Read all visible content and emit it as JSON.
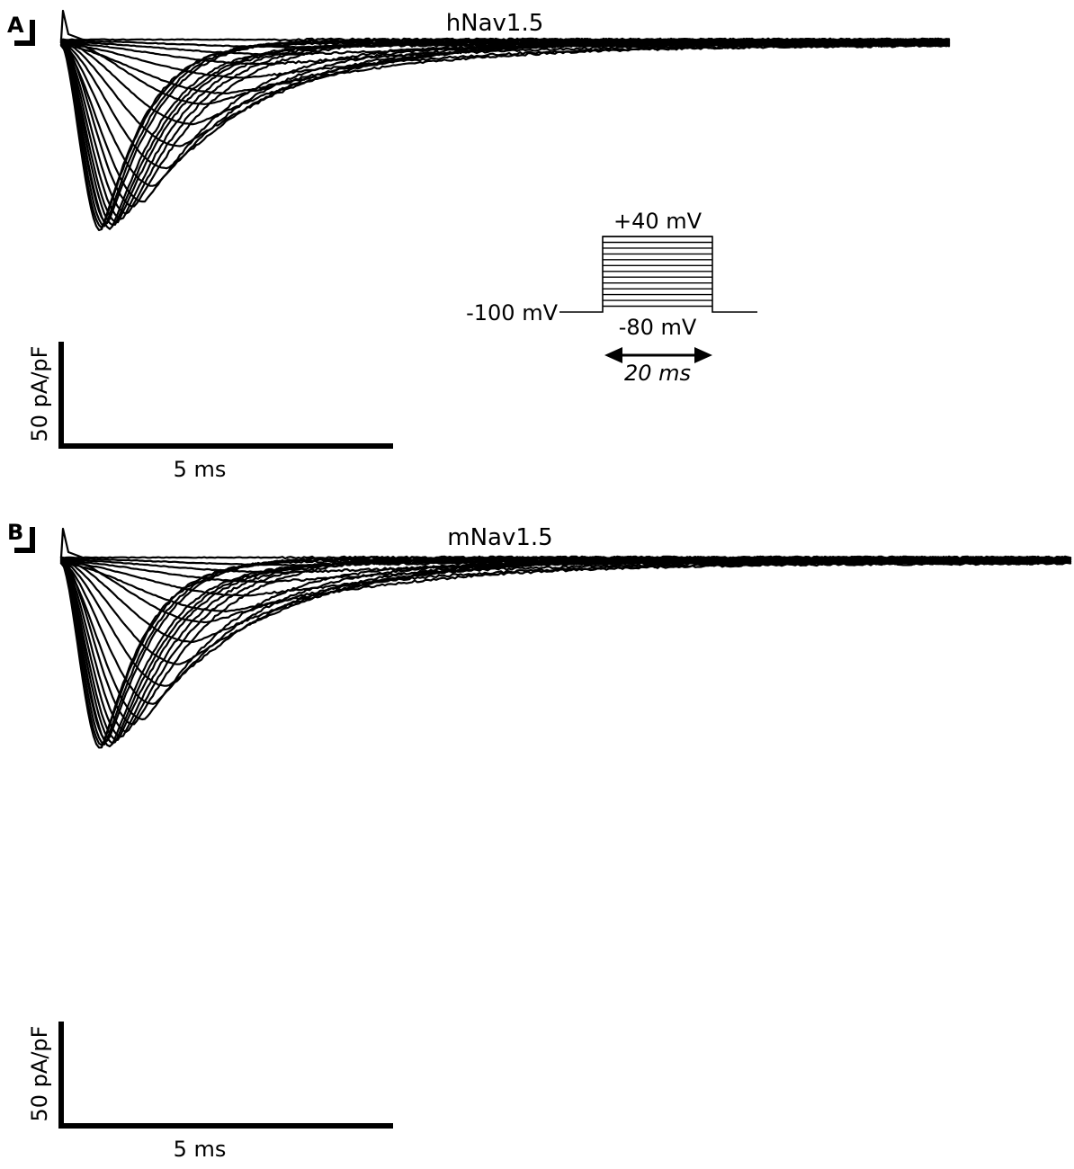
{
  "chart_data": [
    {
      "type": "line",
      "panel_label": "A",
      "title": "hNav1.5",
      "units": {
        "time": "ms",
        "current": "pA/pF"
      },
      "scale_bar": {
        "x_value": 5,
        "x_label": "5 ms",
        "y_value": 50,
        "y_label": "50 pA/pF"
      },
      "trace_count": 22,
      "series": {
        "peak_current_pApF": [
          0,
          -3,
          -6,
          -10,
          -16,
          -23,
          -31,
          -40,
          -50,
          -60,
          -68,
          -75,
          -80,
          -83,
          -85,
          -86,
          -87,
          -88,
          -88,
          -89,
          -89,
          -90
        ],
        "time_to_peak_ms": [
          3.0,
          3.6,
          3.4,
          3.1,
          2.8,
          2.5,
          2.2,
          2.0,
          1.8,
          1.6,
          1.4,
          1.25,
          1.1,
          1.0,
          0.92,
          0.85,
          0.8,
          0.75,
          0.7,
          0.66,
          0.62,
          0.6
        ]
      },
      "protocol": {
        "holding_label": "-100 mV",
        "top_label": "+40 mV",
        "bottom_label": "-80 mV",
        "duration_label": "20 ms",
        "step_count": 13
      }
    },
    {
      "type": "line",
      "panel_label": "B",
      "title": "mNav1.5",
      "units": {
        "time": "ms",
        "current": "pA/pF"
      },
      "scale_bar": {
        "x_value": 5,
        "x_label": "5 ms",
        "y_value": 50,
        "y_label": "50 pA/pF"
      },
      "trace_count": 22,
      "series": {
        "peak_current_pApF": [
          0,
          -3,
          -6,
          -10,
          -16,
          -23,
          -31,
          -40,
          -50,
          -60,
          -68,
          -75,
          -80,
          -83,
          -85,
          -86,
          -87,
          -88,
          -88,
          -89,
          -89,
          -90
        ],
        "time_to_peak_ms": [
          3.0,
          3.6,
          3.4,
          3.1,
          2.8,
          2.5,
          2.2,
          2.0,
          1.8,
          1.6,
          1.4,
          1.25,
          1.1,
          1.0,
          0.92,
          0.85,
          0.8,
          0.75,
          0.7,
          0.66,
          0.62,
          0.6
        ]
      }
    }
  ],
  "style": {
    "trace_color": "#000000",
    "background": "#ffffff"
  }
}
